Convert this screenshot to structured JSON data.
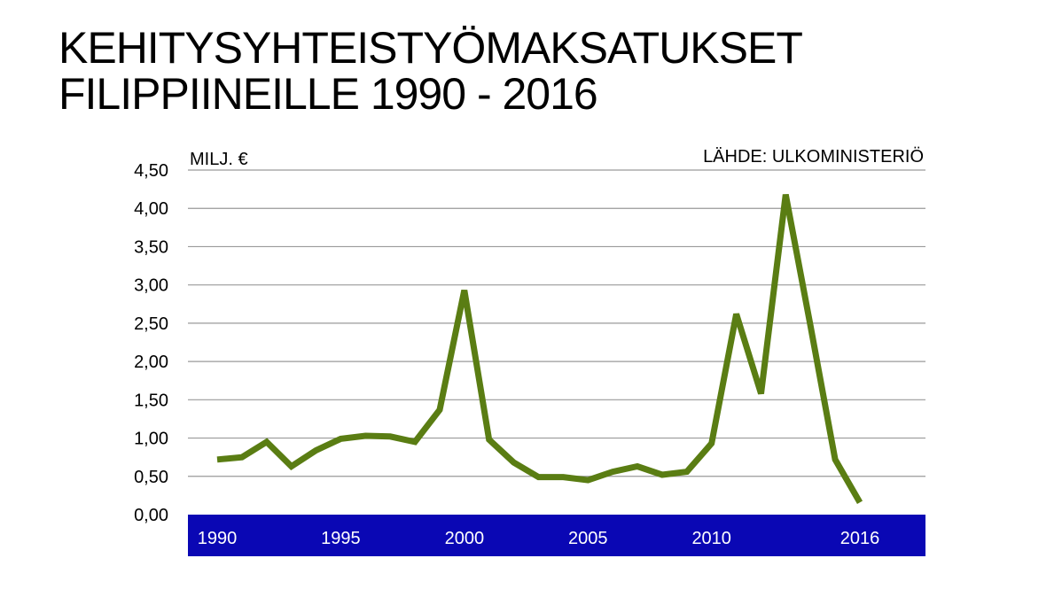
{
  "chart_data": {
    "type": "line",
    "title_lines": [
      "KEHITYSYHTEISTYÖMAKSATUKSET",
      "FILIPPIINEILLE 1990 - 2016"
    ],
    "ylabel": "MILJ. €",
    "source": "LÄHDE: ULKOMINISTERIÖ",
    "ylim": [
      0,
      4.5
    ],
    "y_ticks": [
      "0,00",
      "0,50",
      "1,00",
      "1,50",
      "2,00",
      "2,50",
      "3,00",
      "3,50",
      "4,00",
      "4,50"
    ],
    "x_ticks": [
      "1990",
      "1995",
      "2000",
      "2005",
      "2010",
      "2016"
    ],
    "x": [
      1990,
      1991,
      1992,
      1993,
      1994,
      1995,
      1996,
      1997,
      1998,
      1999,
      2000,
      2001,
      2002,
      2003,
      2004,
      2005,
      2006,
      2007,
      2008,
      2009,
      2010,
      2011,
      2012,
      2013,
      2014,
      2015,
      2016
    ],
    "values": [
      0.72,
      0.75,
      0.95,
      0.63,
      0.84,
      0.99,
      1.03,
      1.02,
      0.95,
      1.37,
      2.93,
      0.98,
      0.68,
      0.49,
      0.49,
      0.45,
      0.56,
      0.63,
      0.52,
      0.56,
      0.93,
      2.62,
      1.58,
      4.18,
      2.47,
      0.72,
      0.16
    ],
    "grid": true,
    "line_color": "#5a7d13",
    "axis_band_color": "#0a07b4",
    "grid_color": "#9a9a9a"
  }
}
